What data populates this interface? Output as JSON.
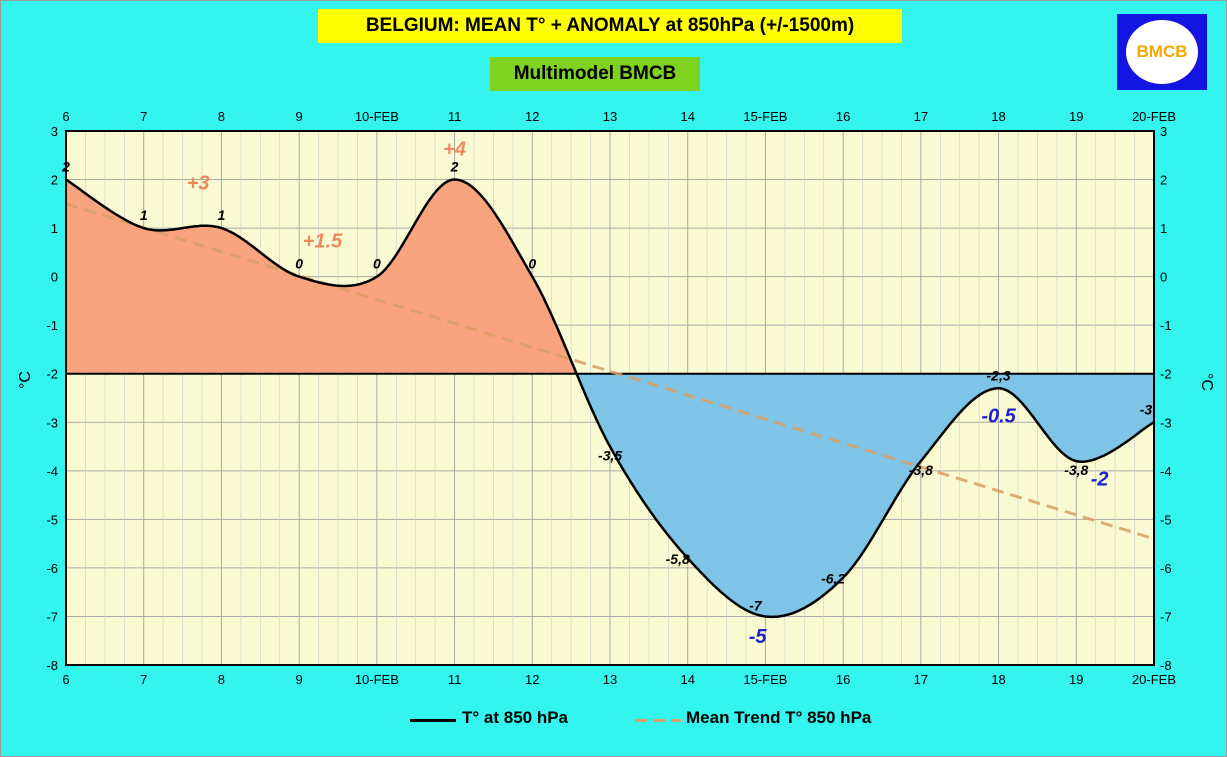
{
  "header": {
    "title": "BELGIUM:  MEAN T° + ANOMALY at 850hPa (+/-1500m)",
    "subtitle": "Multimodel BMCB",
    "logo_text": "BMCB"
  },
  "colors": {
    "background": "#33f5ee",
    "plot_background": "#fafad2",
    "warm_fill": "#f9a47e",
    "cold_fill": "#7dc4e6",
    "temperature_line": "#000000",
    "trend_line": "#d9a066",
    "warm_annotation": "#ec8a5e",
    "cold_annotation": "#2222cc"
  },
  "chart_data": {
    "type": "area",
    "x_ticks": [
      "6",
      "7",
      "8",
      "9",
      "10-FEB",
      "11",
      "12",
      "13",
      "14",
      "15-FEB",
      "16",
      "17",
      "18",
      "19",
      "20-FEB"
    ],
    "ylim": [
      -8,
      3
    ],
    "y_ticks": [
      3,
      2,
      1,
      0,
      -1,
      -2,
      -3,
      -4,
      -5,
      -6,
      -7,
      -8
    ],
    "ylabel": "°C",
    "grid": true,
    "baseline": -2,
    "series": [
      {
        "name": "T° at 850 hPa",
        "style": "line",
        "x": [
          0,
          1,
          2,
          3,
          4,
          5,
          6,
          7,
          8,
          9,
          10,
          11,
          12,
          13,
          14
        ],
        "y": [
          2,
          1,
          1,
          0,
          0,
          2,
          0,
          -3.5,
          -5.8,
          -7,
          -6.2,
          -3.8,
          -2.3,
          -3.8,
          -3
        ],
        "labels": [
          "2",
          "1",
          "1",
          "0",
          "0",
          "2",
          "0",
          "-3,5",
          "-5,8",
          "-7",
          "-6,2",
          "-3,8",
          "-2,3",
          "-3,8",
          "-3"
        ]
      },
      {
        "name": "Mean Trend T° 850 hPa",
        "style": "dashed",
        "x": [
          0,
          14
        ],
        "y": [
          1.5,
          -5.4
        ]
      }
    ],
    "annotations": [
      {
        "text": "+3",
        "x": 1.7,
        "y": 1.8,
        "kind": "warm"
      },
      {
        "text": "+1.5",
        "x": 3.3,
        "y": 0.6,
        "kind": "warm"
      },
      {
        "text": "+4",
        "x": 5.0,
        "y": 2.5,
        "kind": "warm"
      },
      {
        "text": "-5",
        "x": 8.9,
        "y": -7.55,
        "kind": "cold"
      },
      {
        "text": "-0.5",
        "x": 12.0,
        "y": -3.0,
        "kind": "cold"
      },
      {
        "text": "-2",
        "x": 13.3,
        "y": -4.3,
        "kind": "cold"
      }
    ]
  },
  "legend": {
    "items": [
      "T° at 850 hPa",
      "Mean Trend T° 850 hPa"
    ]
  }
}
